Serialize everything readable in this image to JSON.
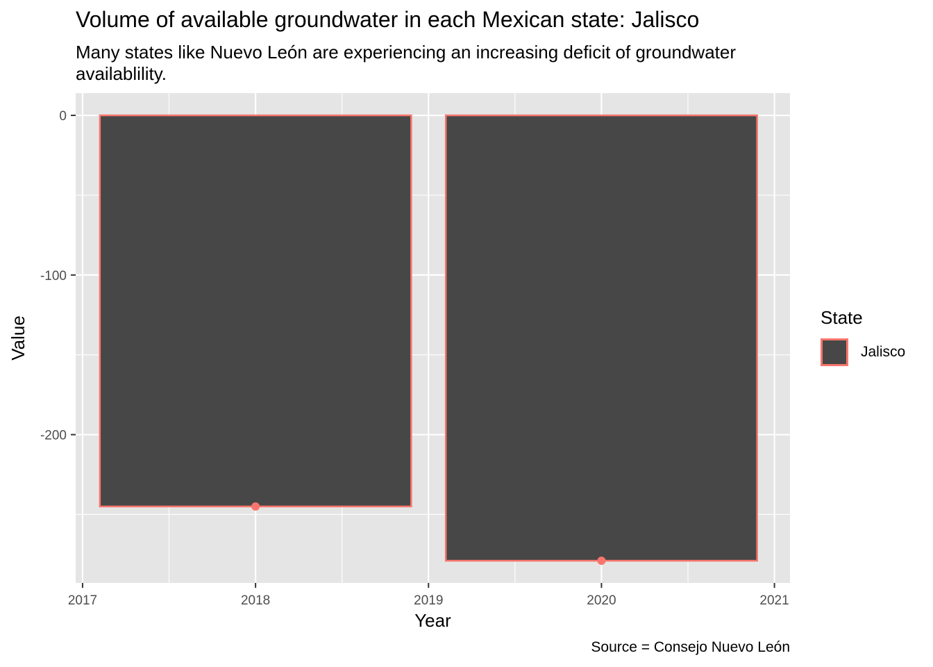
{
  "chart_data": {
    "type": "bar",
    "title": "Volume of available groundwater in each Mexican state: Jalisco",
    "subtitle": "Many states like Nuevo León are experiencing an increasing deficit of groundwater availablility.",
    "caption": "Source = Consejo Nuevo León",
    "xlabel": "Year",
    "ylabel": "Value",
    "x": [
      2018,
      2020
    ],
    "series": [
      {
        "name": "Jalisco",
        "values": [
          -245,
          -279
        ]
      }
    ],
    "xlim": [
      2016.96,
      2021.09
    ],
    "ylim": [
      -292.9,
      13.95
    ],
    "x_ticks": [
      2017,
      2018,
      2019,
      2020,
      2021
    ],
    "y_ticks": [
      0,
      -100,
      -200
    ],
    "bar_fill": "#474747",
    "bar_outline": "#F8766D",
    "point_color": "#F8766D",
    "panel_background": "#E5E5E5",
    "grid_color": "#FFFFFF",
    "grid": true,
    "legend": {
      "title": "State",
      "position": "right",
      "entries": [
        "Jalisco"
      ]
    }
  }
}
